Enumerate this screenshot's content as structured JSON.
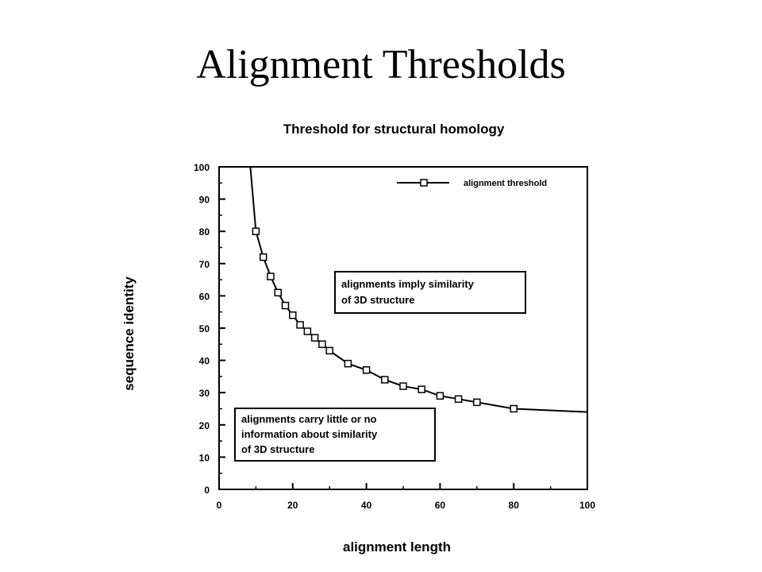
{
  "slide": {
    "title": "Alignment Thresholds"
  },
  "chart_data": {
    "type": "line",
    "title": "Threshold for structural homology",
    "xlabel": "alignment length",
    "ylabel": "sequence identity",
    "xlim": [
      0,
      100
    ],
    "ylim": [
      0,
      100
    ],
    "x_ticks": [
      0,
      20,
      40,
      60,
      80,
      100
    ],
    "y_ticks": [
      0,
      10,
      20,
      30,
      40,
      50,
      60,
      70,
      80,
      90,
      100
    ],
    "grid": false,
    "legend_position": "top-right",
    "series": [
      {
        "name": "alignment threshold",
        "color": "#000000",
        "marker": "square",
        "x": [
          10,
          12,
          14,
          16,
          18,
          20,
          22,
          24,
          26,
          28,
          30,
          35,
          40,
          45,
          50,
          55,
          60,
          65,
          70,
          80
        ],
        "y": [
          80,
          72,
          66,
          61,
          57,
          54,
          51,
          49,
          47,
          45,
          43,
          39,
          37,
          34,
          32,
          31,
          29,
          28,
          27,
          25
        ]
      }
    ],
    "curve_extension": {
      "start": [
        8.5,
        100
      ],
      "end": [
        100,
        24
      ]
    },
    "annotations": [
      {
        "lines": [
          "alignments imply similarity",
          "of 3D structure"
        ]
      },
      {
        "lines": [
          "alignments carry little or no",
          "information about similarity",
          "of 3D structure"
        ]
      }
    ]
  }
}
